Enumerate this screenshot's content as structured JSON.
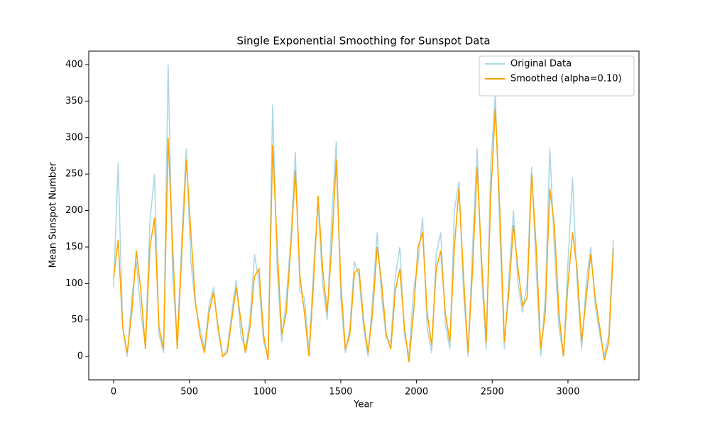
{
  "chart_data": {
    "type": "line",
    "title": "Single Exponential Smoothing for Sunspot Data",
    "xlabel": "Year",
    "ylabel": "Mean Sunspot Number",
    "x": [
      0,
      30,
      60,
      90,
      120,
      150,
      180,
      210,
      240,
      270,
      300,
      330,
      360,
      390,
      420,
      450,
      480,
      510,
      540,
      570,
      600,
      630,
      660,
      690,
      720,
      750,
      780,
      810,
      840,
      870,
      900,
      930,
      960,
      990,
      1020,
      1050,
      1080,
      1110,
      1140,
      1170,
      1200,
      1230,
      1260,
      1290,
      1320,
      1350,
      1380,
      1410,
      1440,
      1470,
      1500,
      1530,
      1560,
      1590,
      1620,
      1650,
      1680,
      1710,
      1740,
      1770,
      1800,
      1830,
      1860,
      1890,
      1920,
      1950,
      1980,
      2010,
      2040,
      2070,
      2100,
      2130,
      2160,
      2190,
      2220,
      2250,
      2280,
      2310,
      2340,
      2370,
      2400,
      2430,
      2460,
      2490,
      2520,
      2550,
      2580,
      2610,
      2640,
      2670,
      2700,
      2730,
      2760,
      2790,
      2820,
      2850,
      2880,
      2910,
      2940,
      2970,
      3000,
      3030,
      3060,
      3090,
      3120,
      3150,
      3180,
      3210,
      3240,
      3270,
      3300
    ],
    "series": [
      {
        "name": "Original Data",
        "color": "#add8e6",
        "values": [
          95,
          265,
          40,
          0,
          80,
          130,
          60,
          15,
          185,
          250,
          30,
          5,
          400,
          110,
          20,
          160,
          285,
          130,
          70,
          40,
          10,
          70,
          95,
          35,
          0,
          10,
          60,
          105,
          30,
          10,
          50,
          140,
          100,
          20,
          0,
          345,
          120,
          20,
          80,
          160,
          280,
          90,
          80,
          5,
          120,
          210,
          100,
          50,
          190,
          295,
          80,
          5,
          40,
          130,
          110,
          40,
          0,
          80,
          170,
          80,
          25,
          20,
          110,
          150,
          30,
          0,
          90,
          130,
          190,
          40,
          5,
          140,
          170,
          45,
          10,
          200,
          240,
          90,
          0,
          150,
          285,
          110,
          10,
          260,
          360,
          170,
          10,
          110,
          200,
          100,
          60,
          100,
          260,
          120,
          0,
          80,
          285,
          150,
          40,
          0,
          130,
          245,
          100,
          10,
          100,
          150,
          70,
          30,
          0,
          30,
          160
        ]
      },
      {
        "name": "Smoothed (alpha=0.10)",
        "color": "#ffa500",
        "values": [
          108,
          160,
          40,
          5,
          60,
          145,
          90,
          10,
          150,
          190,
          40,
          10,
          300,
          150,
          10,
          140,
          270,
          170,
          75,
          30,
          5,
          60,
          88,
          40,
          0,
          5,
          50,
          95,
          50,
          5,
          40,
          110,
          120,
          30,
          -5,
          290,
          150,
          30,
          60,
          150,
          255,
          110,
          60,
          0,
          100,
          220,
          120,
          60,
          150,
          270,
          100,
          10,
          30,
          115,
          120,
          50,
          5,
          60,
          150,
          100,
          30,
          10,
          90,
          120,
          40,
          -8,
          60,
          150,
          170,
          60,
          15,
          120,
          145,
          60,
          20,
          150,
          230,
          110,
          5,
          120,
          260,
          130,
          20,
          220,
          340,
          200,
          20,
          90,
          180,
          120,
          70,
          80,
          250,
          150,
          10,
          60,
          230,
          180,
          60,
          0,
          100,
          170,
          120,
          20,
          80,
          140,
          80,
          40,
          -5,
          20,
          148
        ]
      }
    ],
    "xlim": [
      -164,
      3469
    ],
    "ylim": [
      -32,
      418.5
    ],
    "xticks": [
      0,
      500,
      1000,
      1500,
      2000,
      2500,
      3000
    ],
    "yticks": [
      0,
      50,
      100,
      150,
      200,
      250,
      300,
      350,
      400
    ],
    "legend": "upper right"
  }
}
